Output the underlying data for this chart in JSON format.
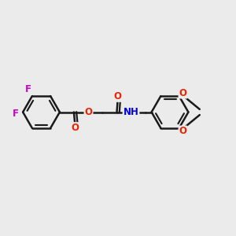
{
  "bg_color": "#ebebeb",
  "bond_color": "#1a1a1a",
  "bond_width": 1.8,
  "atom_colors": {
    "F": "#cc00cc",
    "O": "#ee2200",
    "N": "#0000dd",
    "C": "#1a1a1a"
  },
  "font_size": 8.5,
  "fig_w": 3.0,
  "fig_h": 3.0,
  "dpi": 100
}
